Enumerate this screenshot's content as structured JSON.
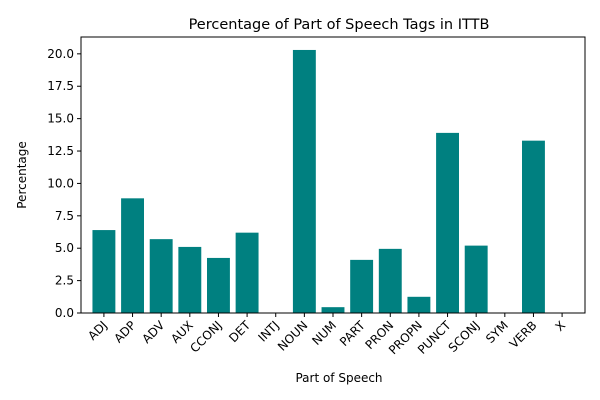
{
  "chart_data": {
    "type": "bar",
    "title": "Percentage of Part of Speech Tags in ITTB",
    "xlabel": "Part of Speech",
    "ylabel": "Percentage",
    "categories": [
      "ADJ",
      "ADP",
      "ADV",
      "AUX",
      "CCONJ",
      "DET",
      "INTJ",
      "NOUN",
      "NUM",
      "PART",
      "PRON",
      "PROPN",
      "PUNCT",
      "SCONJ",
      "SYM",
      "VERB",
      "X"
    ],
    "values": [
      6.4,
      8.85,
      5.7,
      5.1,
      4.25,
      6.2,
      0.0,
      20.3,
      0.45,
      4.1,
      4.95,
      1.25,
      13.9,
      5.2,
      0.0,
      13.3,
      0.0
    ],
    "ylim": [
      0,
      21.3
    ],
    "yticks": [
      "0.0",
      "2.5",
      "5.0",
      "7.5",
      "10.0",
      "12.5",
      "15.0",
      "17.5",
      "20.0"
    ],
    "bar_color": "#008080",
    "grid": false,
    "legend": "none"
  }
}
